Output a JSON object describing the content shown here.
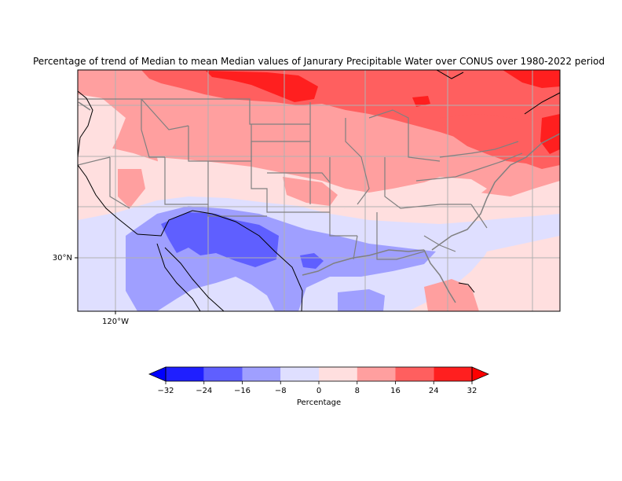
{
  "title": "Percentage of trend of Median to mean Median values of Janurary Precipitable Water over CONUS over 1980-2022 period",
  "map": {
    "lat_ticks": [
      {
        "label": "30°N"
      }
    ],
    "lon_ticks": [
      {
        "label": "120°W"
      }
    ],
    "gridlines": true,
    "projection": "PlateCarree",
    "colormap": "bwr",
    "land_borders": "gray",
    "coastlines": "black"
  },
  "colorbar": {
    "label": "Percentage",
    "extend": "both",
    "tick_labels": [
      "−32",
      "−24",
      "−16",
      "−8",
      "0",
      "8",
      "16",
      "24",
      "32"
    ],
    "levels": [
      -32,
      -24,
      -16,
      -8,
      0,
      8,
      16,
      24,
      32
    ],
    "colors": [
      "#1f1fff",
      "#5f5fff",
      "#9f9fff",
      "#dfdfff",
      "#ffdfdf",
      "#ff9f9f",
      "#ff5f5f",
      "#ff1f1f"
    ],
    "under_color": "#0000ff",
    "over_color": "#ff0000"
  },
  "colors": {
    "red_light": "#ffdfdf",
    "red_mid": "#ff9f9f",
    "red_strong": "#ff5f5f",
    "red_max": "#ff1f1f",
    "blue_light": "#dfdfff",
    "blue_mid": "#9f9fff",
    "blue_strong": "#5f5fff",
    "border_gray": "#808080",
    "grid": "#b0b0b0"
  }
}
